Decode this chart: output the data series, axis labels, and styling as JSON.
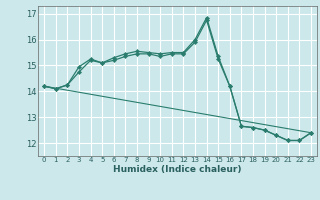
{
  "xlabel": "Humidex (Indice chaleur)",
  "background_color": "#cce8ea",
  "grid_color": "#ffffff",
  "line_color": "#2a7d6e",
  "xlim": [
    -0.5,
    23.5
  ],
  "ylim": [
    11.5,
    17.3
  ],
  "yticks": [
    12,
    13,
    14,
    15,
    16,
    17
  ],
  "xticks": [
    0,
    1,
    2,
    3,
    4,
    5,
    6,
    7,
    8,
    9,
    10,
    11,
    12,
    13,
    14,
    15,
    16,
    17,
    18,
    19,
    20,
    21,
    22,
    23
  ],
  "xtick_labels": [
    "0",
    "1",
    "2",
    "3",
    "4",
    "5",
    "6",
    "7",
    "8",
    "9",
    "10",
    "11",
    "12",
    "13",
    "14",
    "15",
    "16",
    "17",
    "18",
    "19",
    "20",
    "21",
    "22",
    "23"
  ],
  "line1_x": [
    0,
    1,
    2,
    3,
    4,
    5,
    6,
    7,
    8,
    9,
    10,
    11,
    12,
    13,
    14,
    15,
    16,
    17,
    18,
    19,
    20,
    21,
    22,
    23
  ],
  "line1_y": [
    14.2,
    14.1,
    14.25,
    14.75,
    15.2,
    15.1,
    15.3,
    15.45,
    15.55,
    15.5,
    15.45,
    15.5,
    15.5,
    16.0,
    16.85,
    15.35,
    14.2,
    12.65,
    12.6,
    12.5,
    12.3,
    12.1,
    12.1,
    12.4
  ],
  "line2_x": [
    0,
    1,
    2,
    3,
    4,
    5,
    6,
    7,
    8,
    9,
    10,
    11,
    12,
    13,
    14,
    15,
    16,
    17,
    18,
    19,
    20,
    21,
    22,
    23
  ],
  "line2_y": [
    14.2,
    14.1,
    14.25,
    14.95,
    15.25,
    15.1,
    15.2,
    15.35,
    15.45,
    15.45,
    15.35,
    15.45,
    15.45,
    15.9,
    16.75,
    15.25,
    14.2,
    12.65,
    12.6,
    12.5,
    12.3,
    12.1,
    12.1,
    12.4
  ],
  "line3_x": [
    0,
    23
  ],
  "line3_y": [
    14.2,
    12.4
  ],
  "xlabel_fontsize": 6.5,
  "xlabel_fontweight": "bold",
  "xtick_fontsize": 5.0,
  "ytick_fontsize": 6.0
}
